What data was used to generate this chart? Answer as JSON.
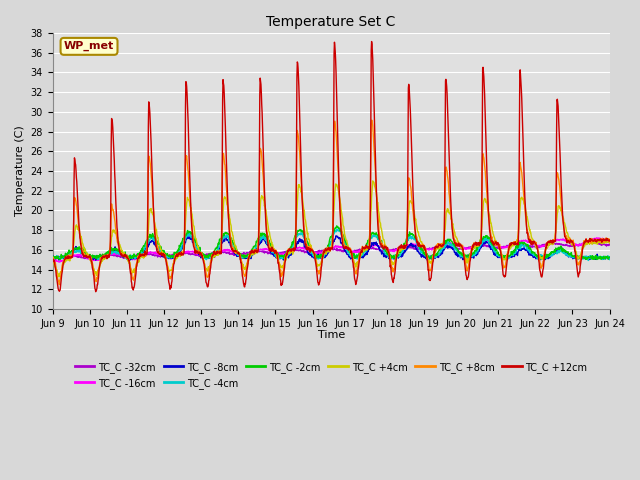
{
  "title": "Temperature Set C",
  "xlabel": "Time",
  "ylabel": "Temperature (C)",
  "ylim": [
    10,
    38
  ],
  "xlim": [
    0,
    360
  ],
  "background_color": "#d8d8d8",
  "plot_bg_color": "#e0e0e0",
  "annotation_text": "WP_met",
  "annotation_bg": "#ffffcc",
  "annotation_border": "#aa8800",
  "annotation_text_color": "#880000",
  "series_colors": {
    "TC_C -32cm": "#aa00cc",
    "TC_C -16cm": "#ff00ff",
    "TC_C -8cm": "#0000cc",
    "TC_C -4cm": "#00cccc",
    "TC_C -2cm": "#00cc00",
    "TC_C +4cm": "#cccc00",
    "TC_C +8cm": "#ff8800",
    "TC_C +12cm": "#cc0000"
  },
  "xtick_labels": [
    "Jun 9",
    "Jun 10",
    "Jun 11",
    "Jun 12",
    "Jun 13",
    "Jun 14",
    "Jun 15",
    "Jun 16",
    "Jun 17",
    "Jun 18",
    "Jun 19",
    "Jun 20",
    "Jun 21",
    "Jun 22",
    "Jun 23",
    "Jun 24"
  ],
  "xtick_positions": [
    0,
    24,
    48,
    72,
    96,
    120,
    144,
    168,
    192,
    216,
    240,
    264,
    288,
    312,
    336,
    360
  ],
  "red_peaks": [
    25,
    29,
    30.5,
    32.5,
    32.5,
    32.5,
    34.2,
    36,
    36,
    31.5,
    32,
    33,
    32.5,
    29.5,
    0,
    0
  ],
  "orange_peaks": [
    21,
    20,
    25,
    25,
    25,
    25.5,
    27,
    28,
    28,
    22,
    23,
    24,
    23,
    22,
    0,
    0
  ],
  "yellow_peaks": [
    18.5,
    18,
    20,
    21,
    21,
    21,
    22,
    22,
    22,
    20,
    19,
    20,
    20,
    19,
    0,
    0
  ],
  "green_peaks": [
    16.5,
    16.5,
    18,
    18.5,
    18.5,
    18.5,
    19,
    19.5,
    19,
    19,
    18.5,
    19,
    18.5,
    18,
    0,
    0
  ],
  "cyan_peaks": [
    16,
    16,
    17.5,
    18,
    18,
    18,
    18.5,
    19,
    18.5,
    18.5,
    18,
    18.5,
    18,
    17.5,
    0,
    0
  ],
  "blue_peaks": [
    16,
    16,
    17,
    17.5,
    17.5,
    17.5,
    17.5,
    18,
    17.5,
    17.5,
    17.5,
    18,
    17.5,
    17.5,
    0,
    0
  ]
}
